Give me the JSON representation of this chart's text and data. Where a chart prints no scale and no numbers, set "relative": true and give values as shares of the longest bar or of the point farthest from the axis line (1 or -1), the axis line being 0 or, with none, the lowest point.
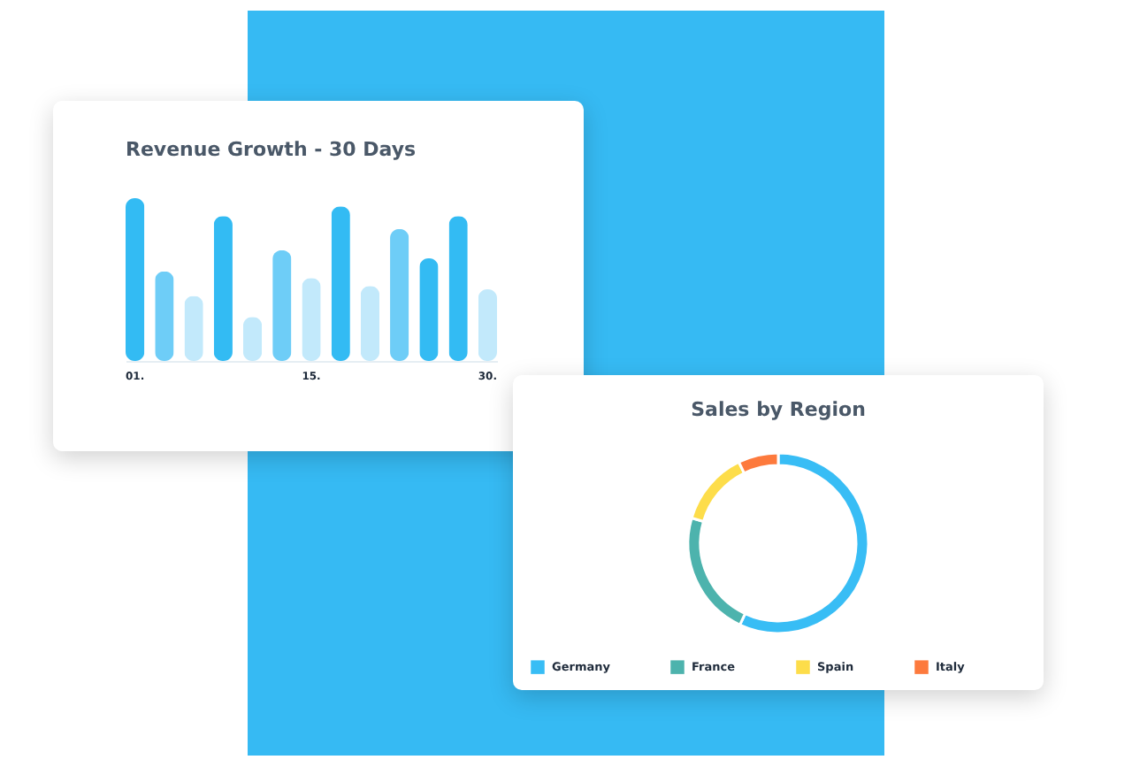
{
  "chart_data": [
    {
      "type": "bar",
      "title": "Revenue Growth - 30 Days",
      "relative": true,
      "categories": [
        "01.",
        null,
        null,
        null,
        null,
        null,
        "15.",
        null,
        null,
        null,
        null,
        null,
        "30."
      ],
      "values": [
        1,
        0.55,
        0.4,
        0.89,
        0.27,
        0.68,
        0.51,
        0.95,
        0.46,
        0.81,
        0.63,
        0.89,
        0.44
      ],
      "colors": [
        "#33bbf3",
        "#6ecdf7",
        "#c2e9fb",
        "#33bbf3",
        "#c2e9fb",
        "#6ecdf7",
        "#c2e9fb",
        "#33bbf3",
        "#c2e9fb",
        "#6ecdf7",
        "#33bbf3",
        "#33bbf3",
        "#c2e9fb"
      ]
    },
    {
      "type": "donut",
      "title": "Sales by Region",
      "categories": [
        "Germany",
        "France",
        "Spain",
        "Italy"
      ],
      "values": [
        57,
        22.5,
        13.3,
        7.2
      ],
      "colors": [
        "#38bdf5",
        "#4db3ad",
        "#fddd4a",
        "#fd7a3d"
      ],
      "legend": "bottom"
    }
  ]
}
